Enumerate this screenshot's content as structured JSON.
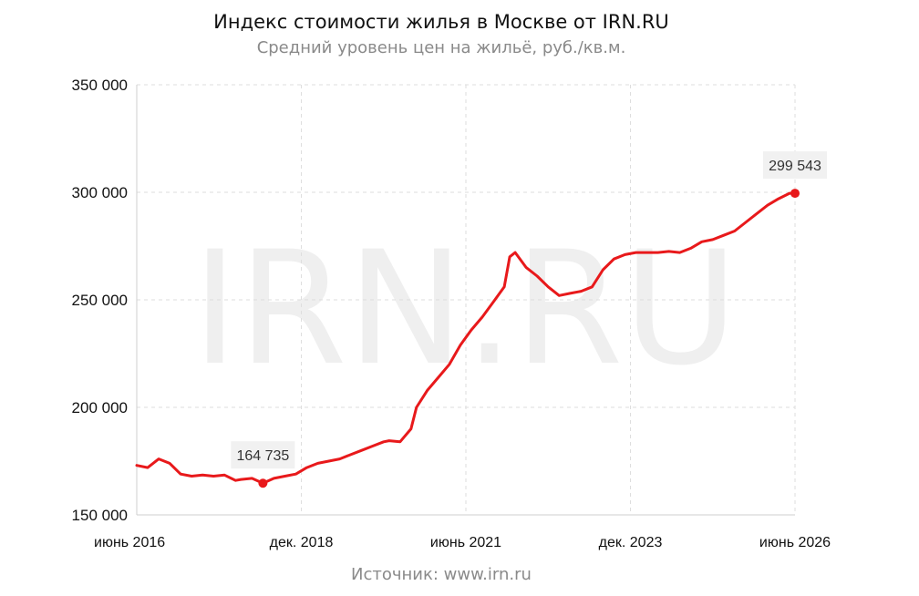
{
  "chart_data": {
    "type": "line",
    "title": "Индекс стоимости жилья в Москве от IRN.RU",
    "subtitle": "Средний уровень цен на жильё, руб./кв.м.",
    "source": "Источник: www.irn.ru",
    "watermark": "IRN.RU",
    "ylim": [
      150000,
      350000
    ],
    "yticks": [
      150000,
      200000,
      250000,
      300000,
      350000
    ],
    "ytick_labels": [
      "150 000",
      "200 000",
      "250 000",
      "300 000",
      "350 000"
    ],
    "xlim": [
      "2016-06",
      "2026-06"
    ],
    "xticks": [
      "2016-06",
      "2018-12",
      "2021-06",
      "2023-12",
      "2026-06"
    ],
    "xtick_labels": [
      "июнь 2016",
      "дек. 2018",
      "июнь 2021",
      "дек. 2023",
      "июнь 2026"
    ],
    "grid": true,
    "line_color": "#e8191b",
    "series": [
      {
        "x": [
          "2016-06",
          "2016-08",
          "2016-10",
          "2016-11",
          "2016-12",
          "2017-02",
          "2017-04",
          "2017-06",
          "2017-08",
          "2017-10",
          "2017-12",
          "2018-01",
          "2018-03",
          "2018-05",
          "2018-07",
          "2018-09",
          "2018-11",
          "2019-01",
          "2019-03",
          "2019-05",
          "2019-07",
          "2019-09",
          "2019-11",
          "2020-01",
          "2020-03",
          "2020-04",
          "2020-06",
          "2020-08",
          "2020-09",
          "2020-11",
          "2021-01",
          "2021-03",
          "2021-05",
          "2021-07",
          "2021-09",
          "2021-11",
          "2022-01",
          "2022-02",
          "2022-03",
          "2022-05",
          "2022-07",
          "2022-09",
          "2022-11",
          "2023-01",
          "2023-03",
          "2023-05",
          "2023-07",
          "2023-09",
          "2023-11",
          "2024-01",
          "2024-03",
          "2024-05",
          "2024-07",
          "2024-09",
          "2024-11",
          "2025-01",
          "2025-03",
          "2025-05",
          "2025-07",
          "2025-09",
          "2025-11",
          "2026-01",
          "2026-03",
          "2026-05",
          "2026-06"
        ],
        "values": [
          173000,
          172000,
          176000,
          175000,
          174000,
          169000,
          168000,
          168500,
          168000,
          168500,
          166000,
          166500,
          167000,
          164735,
          167000,
          168000,
          169000,
          172000,
          174000,
          175000,
          176000,
          178000,
          180000,
          182000,
          184000,
          184500,
          184000,
          190000,
          200000,
          208000,
          214000,
          220000,
          229000,
          236000,
          242000,
          249000,
          256000,
          270000,
          272000,
          265000,
          261000,
          256000,
          252000,
          253000,
          254000,
          256000,
          264000,
          269000,
          271000,
          272000,
          272000,
          272000,
          272500,
          272000,
          274000,
          277000,
          278000,
          280000,
          282000,
          286000,
          290000,
          294000,
          297000,
          299543,
          299543
        ]
      }
    ],
    "annotations": [
      {
        "x": "2018-05",
        "y": 164735,
        "label": "164 735"
      },
      {
        "x": "2026-06",
        "y": 299543,
        "label": "299 543"
      }
    ]
  }
}
